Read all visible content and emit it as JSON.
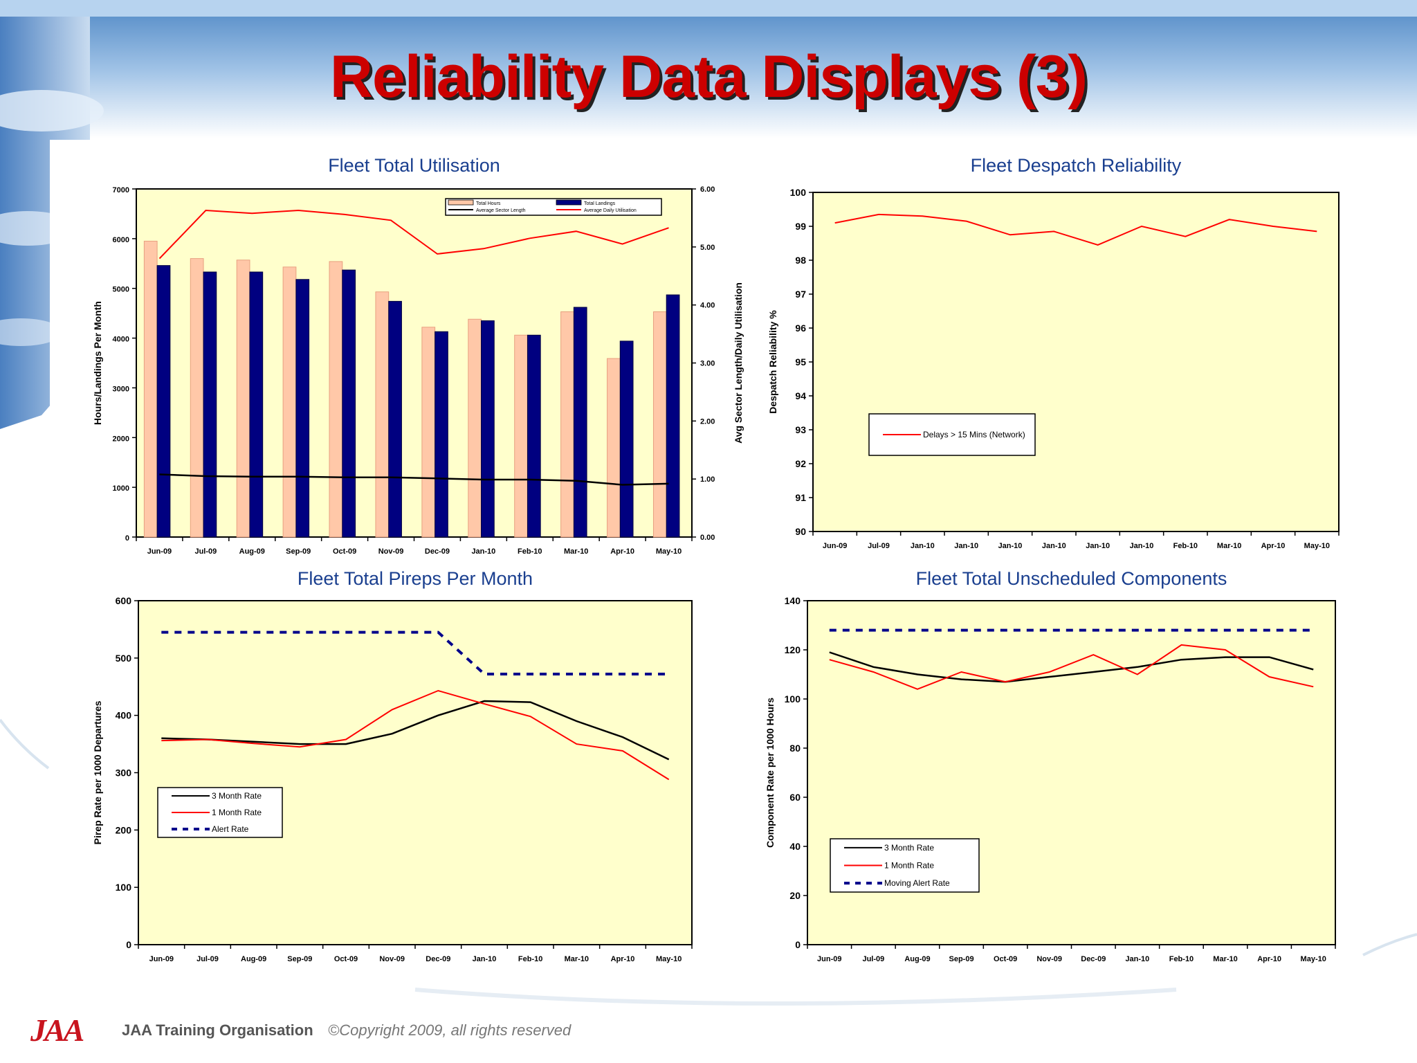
{
  "slide": {
    "title": "Reliability Data Displays (3)"
  },
  "footer": {
    "logo": "JAA",
    "org": "JAA Training Organisation",
    "copyright": "©Copyright 2009, all rights reserved"
  },
  "chart_data": [
    {
      "id": "utilisation",
      "type": "bar",
      "title": "Fleet Total Utilisation",
      "ylabel": "Hours/Landings Per Month",
      "y2label": "Avg Sector Length/Daily Utilisation",
      "categories": [
        "Jun-09",
        "Jul-09",
        "Aug-09",
        "Sep-09",
        "Oct-09",
        "Nov-09",
        "Dec-09",
        "Jan-10",
        "Feb-10",
        "Mar-10",
        "Apr-10",
        "May-10"
      ],
      "ylim": [
        0,
        7000
      ],
      "yticks": [
        "0",
        "1000",
        "2000",
        "3000",
        "4000",
        "5000",
        "6000",
        "7000"
      ],
      "y2lim": [
        0,
        6
      ],
      "y2ticks": [
        "0.00",
        "1.00",
        "2.00",
        "3.00",
        "4.00",
        "5.00",
        "6.00"
      ],
      "series": [
        {
          "name": "Total Hours",
          "kind": "bar",
          "axis": "left",
          "color": "#ffc8a8",
          "values": [
            5950,
            5600,
            5570,
            5430,
            5540,
            4930,
            4220,
            4380,
            4060,
            4530,
            3590,
            4530
          ]
        },
        {
          "name": "Total Landings",
          "kind": "bar",
          "axis": "left",
          "color": "#000080",
          "values": [
            5460,
            5330,
            5330,
            5180,
            5370,
            4740,
            4130,
            4350,
            4060,
            4620,
            3940,
            4870
          ]
        },
        {
          "name": "Average Sector Length",
          "kind": "line",
          "axis": "right",
          "color": "#000000",
          "values": [
            1.08,
            1.05,
            1.04,
            1.04,
            1.03,
            1.03,
            1.01,
            0.99,
            0.99,
            0.97,
            0.9,
            0.92
          ]
        },
        {
          "name": "Average Daily Utilisation",
          "kind": "line",
          "axis": "right",
          "color": "#ff0000",
          "values": [
            4.8,
            5.63,
            5.58,
            5.63,
            5.56,
            5.46,
            4.88,
            4.97,
            5.15,
            5.27,
            5.05,
            5.33
          ]
        }
      ],
      "legend_position": "top-right",
      "grid": false
    },
    {
      "id": "despatch",
      "type": "line",
      "title": "Fleet Despatch Reliability",
      "ylabel": "Despatch Reliability %",
      "categories": [
        "Jun-09",
        "Jul-09",
        "Jan-10",
        "Jan-10",
        "Jan-10",
        "Jan-10",
        "Jan-10",
        "Jan-10",
        "Feb-10",
        "Mar-10",
        "Apr-10",
        "May-10"
      ],
      "ylim": [
        90,
        100
      ],
      "yticks": [
        "90",
        "91",
        "92",
        "93",
        "94",
        "95",
        "96",
        "97",
        "98",
        "99",
        "100"
      ],
      "series": [
        {
          "name": "Delays > 15 Mins (Network)",
          "color": "#ff0000",
          "values": [
            99.1,
            99.35,
            99.3,
            99.15,
            98.75,
            98.85,
            98.45,
            99.0,
            98.7,
            99.2,
            99.0,
            98.85
          ]
        }
      ],
      "legend_position": "bottom-left",
      "grid": false
    },
    {
      "id": "pireps",
      "type": "line",
      "title": "Fleet Total Pireps Per Month",
      "ylabel": "Pirep Rate per 1000 Departures",
      "categories": [
        "Jun-09",
        "Jul-09",
        "Aug-09",
        "Sep-09",
        "Oct-09",
        "Nov-09",
        "Dec-09",
        "Jan-10",
        "Feb-10",
        "Mar-10",
        "Apr-10",
        "May-10"
      ],
      "ylim": [
        0,
        600
      ],
      "yticks": [
        "0",
        "100",
        "200",
        "300",
        "400",
        "500",
        "600"
      ],
      "series": [
        {
          "name": "3 Month Rate",
          "color": "#000000",
          "dash": false,
          "values": [
            360,
            358,
            354,
            350,
            350,
            368,
            400,
            425,
            423,
            390,
            362,
            323
          ]
        },
        {
          "name": "1 Month Rate",
          "color": "#ff0000",
          "dash": false,
          "values": [
            356,
            358,
            351,
            345,
            358,
            410,
            443,
            420,
            398,
            350,
            338,
            288
          ]
        },
        {
          "name": "Alert Rate",
          "color": "#00008b",
          "dash": true,
          "values": [
            545,
            545,
            545,
            545,
            545,
            545,
            545,
            472,
            472,
            472,
            472,
            472
          ]
        }
      ],
      "legend_position": "bottom-left",
      "grid": false
    },
    {
      "id": "components",
      "type": "line",
      "title": "Fleet Total Unscheduled Components",
      "ylabel": "Component Rate per 1000 Hours",
      "categories": [
        "Jun-09",
        "Jul-09",
        "Aug-09",
        "Sep-09",
        "Oct-09",
        "Nov-09",
        "Dec-09",
        "Jan-10",
        "Feb-10",
        "Mar-10",
        "Apr-10",
        "May-10"
      ],
      "ylim": [
        0,
        140
      ],
      "yticks": [
        "0",
        "20",
        "40",
        "60",
        "80",
        "100",
        "120",
        "140"
      ],
      "series": [
        {
          "name": "3 Month Rate",
          "color": "#000000",
          "dash": false,
          "values": [
            119,
            113,
            110,
            108,
            107,
            109,
            111,
            113,
            116,
            117,
            117,
            112
          ]
        },
        {
          "name": "1 Month Rate",
          "color": "#ff0000",
          "dash": false,
          "values": [
            116,
            111,
            104,
            111,
            107,
            111,
            118,
            110,
            122,
            120,
            109,
            105
          ]
        },
        {
          "name": "Moving Alert Rate",
          "color": "#00008b",
          "dash": true,
          "values": [
            128,
            128,
            128,
            128,
            128,
            128,
            128,
            128,
            128,
            128,
            128,
            128
          ]
        }
      ],
      "legend_position": "bottom-left",
      "grid": false
    }
  ]
}
